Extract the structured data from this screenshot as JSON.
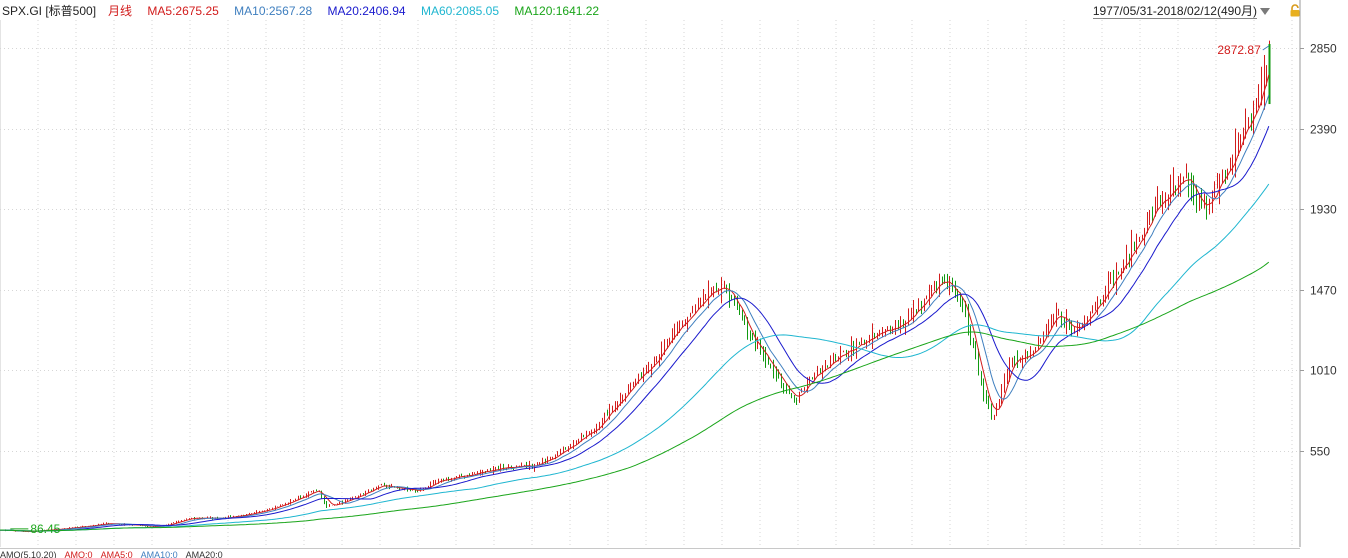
{
  "header": {
    "symbol": "SPX.GI [标普500]",
    "period": "月线",
    "ma_labels": [
      {
        "text": "MA5:2675.25",
        "color": "#d21c1c"
      },
      {
        "text": "MA10:2567.28",
        "color": "#3f7fbf"
      },
      {
        "text": "MA20:2406.94",
        "color": "#1a1acd"
      },
      {
        "text": "MA60:2085.05",
        "color": "#1fb6d0"
      },
      {
        "text": "MA120:1641.22",
        "color": "#1aa51a"
      }
    ],
    "date_range": "1977/05/31-2018/02/12(490月)"
  },
  "lower_panel": {
    "items": [
      {
        "text": "AMO(5,10,20)",
        "color": "#333333"
      },
      {
        "text": "AMO:0",
        "color": "#d21c1c"
      },
      {
        "text": "AMA5:0",
        "color": "#d21c1c"
      },
      {
        "text": "AMA10:0",
        "color": "#3f7fbf"
      },
      {
        "text": "AMA20:0",
        "color": "#333333"
      }
    ]
  },
  "chart_data": {
    "type": "line",
    "title": "",
    "xlabel": "",
    "ylabel": "",
    "y_ticks": [
      550,
      1010,
      1470,
      1930,
      2390,
      2850
    ],
    "ylim": [
      0,
      3010
    ],
    "x_range_months": [
      1977.42,
      2018.12
    ],
    "grid": true,
    "grid_style": "dotted",
    "annotations": [
      {
        "text": "2872.87",
        "x": 2018.08,
        "y": 2872.87,
        "color": "#d21c1c"
      },
      {
        "text": "86.45",
        "x": 1978.2,
        "y": 86.45,
        "color": "#1aa51a"
      }
    ],
    "price_anchor_points": [
      [
        1977.4,
        98
      ],
      [
        1978.2,
        86.45
      ],
      [
        1979.5,
        105
      ],
      [
        1980.9,
        135
      ],
      [
        1982.5,
        115
      ],
      [
        1983.5,
        165
      ],
      [
        1984.5,
        165
      ],
      [
        1985.5,
        190
      ],
      [
        1986.5,
        245
      ],
      [
        1987.6,
        330
      ],
      [
        1987.85,
        230
      ],
      [
        1988.5,
        265
      ],
      [
        1989.6,
        350
      ],
      [
        1990.8,
        320
      ],
      [
        1991.5,
        380
      ],
      [
        1992.5,
        415
      ],
      [
        1993.5,
        455
      ],
      [
        1994.5,
        460
      ],
      [
        1995.5,
        560
      ],
      [
        1996.5,
        680
      ],
      [
        1997.5,
        900
      ],
      [
        1998.5,
        1100
      ],
      [
        1999.5,
        1330
      ],
      [
        2000.2,
        1450
      ],
      [
        2000.7,
        1480
      ],
      [
        2001.5,
        1180
      ],
      [
        2002.5,
        920
      ],
      [
        2002.9,
        840
      ],
      [
        2003.5,
        990
      ],
      [
        2004.5,
        1120
      ],
      [
        2005.5,
        1210
      ],
      [
        2006.5,
        1300
      ],
      [
        2007.6,
        1530
      ],
      [
        2008.3,
        1370
      ],
      [
        2008.9,
        900
      ],
      [
        2009.2,
        720
      ],
      [
        2009.8,
        1080
      ],
      [
        2010.5,
        1100
      ],
      [
        2011.3,
        1340
      ],
      [
        2011.8,
        1230
      ],
      [
        2012.5,
        1380
      ],
      [
        2013.5,
        1640
      ],
      [
        2014.5,
        1960
      ],
      [
        2015.4,
        2100
      ],
      [
        2015.8,
        1960
      ],
      [
        2016.1,
        1940
      ],
      [
        2016.8,
        2200
      ],
      [
        2017.5,
        2450
      ],
      [
        2017.95,
        2700
      ],
      [
        2018.08,
        2820
      ]
    ],
    "ma_values_latest": {
      "MA5": 2675.25,
      "MA10": 2567.28,
      "MA20": 2406.94,
      "MA60": 2085.05,
      "MA120": 1641.22
    },
    "series": [
      {
        "name": "MA5",
        "color": "#d21c1c"
      },
      {
        "name": "MA10",
        "color": "#3f7fbf"
      },
      {
        "name": "MA20",
        "color": "#1a1acd"
      },
      {
        "name": "MA60",
        "color": "#1fb6d0"
      },
      {
        "name": "MA120",
        "color": "#1aa51a"
      }
    ]
  }
}
